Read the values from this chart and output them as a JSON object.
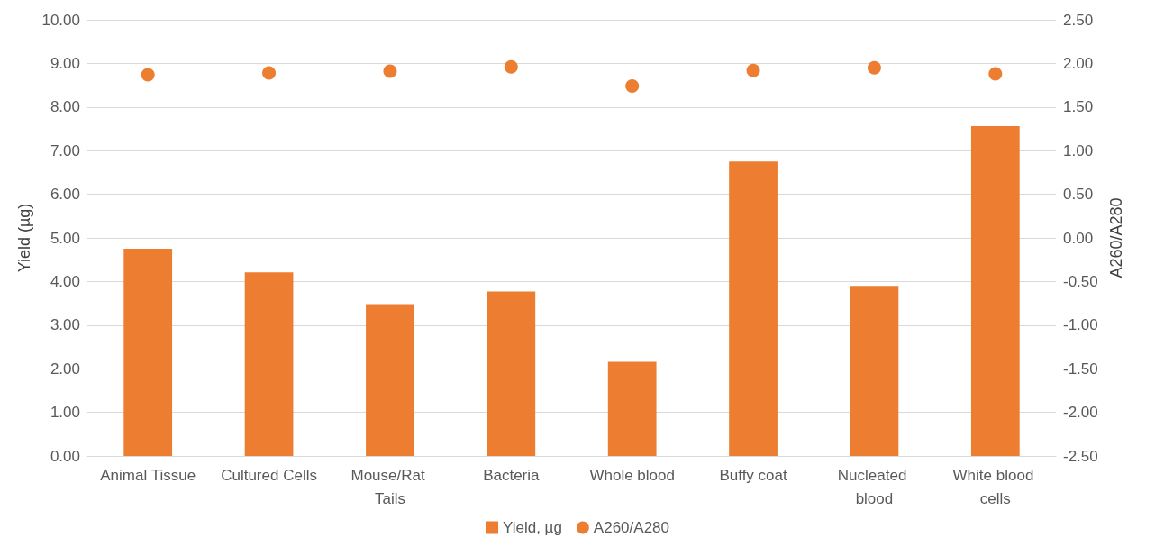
{
  "chart_data": {
    "type": "bar",
    "categories": [
      "Animal Tissue",
      "Cultured Cells",
      "Mouse/Rat Tails",
      "Bacteria",
      "Whole blood",
      "Buffy coat",
      "Nucleated blood",
      "White blood cells"
    ],
    "ylabel": "Yield (µg)",
    "y2label": "A260/A280",
    "series": [
      {
        "name": "Yield, µg",
        "color": "#ed7d31",
        "values": [
          4.75,
          4.21,
          3.48,
          3.77,
          2.16,
          6.75,
          3.9,
          7.56
        ]
      },
      {
        "name": "A260/A280",
        "type": "scatter",
        "axis": "y2",
        "color": "#ed7d31",
        "x": [
          "Animal Tissue",
          "Cultured Cells",
          "Mouse/Rat Tails",
          "Bacteria",
          "Whole blood",
          "Buffy coat",
          "Nucleated blood",
          "White blood cells"
        ],
        "values": [
          1.87,
          1.89,
          1.91,
          1.96,
          1.74,
          1.92,
          1.95,
          1.88
        ]
      }
    ],
    "ylim": [
      0,
      10
    ],
    "yticks": [
      {
        "value": 0,
        "label": "0.00"
      },
      {
        "value": 1,
        "label": "1.00"
      },
      {
        "value": 2,
        "label": "2.00"
      },
      {
        "value": 3,
        "label": "3.00"
      },
      {
        "value": 4,
        "label": "4.00"
      },
      {
        "value": 5,
        "label": "5.00"
      },
      {
        "value": 6,
        "label": "6.00"
      },
      {
        "value": 7,
        "label": "7.00"
      },
      {
        "value": 8,
        "label": "8.00"
      },
      {
        "value": 9,
        "label": "9.00"
      },
      {
        "value": 10,
        "label": "10.00"
      }
    ],
    "y2lim": [
      -2.5,
      2.5
    ],
    "y2ticks": [
      {
        "value": -2.5,
        "label": "-2.50"
      },
      {
        "value": -2,
        "label": "-2.00"
      },
      {
        "value": -1.5,
        "label": "-1.50"
      },
      {
        "value": -1,
        "label": "-1.00"
      },
      {
        "value": -0.5,
        "label": "-0.50"
      },
      {
        "value": 0,
        "label": "0.00"
      },
      {
        "value": 0.5,
        "label": "0.50"
      },
      {
        "value": 1,
        "label": "1.00"
      },
      {
        "value": 1.5,
        "label": "1.50"
      },
      {
        "value": 2,
        "label": "2.00"
      },
      {
        "value": 2.5,
        "label": "2.50"
      }
    ],
    "grid": "y",
    "legend": "bottom",
    "marker": "circle"
  }
}
